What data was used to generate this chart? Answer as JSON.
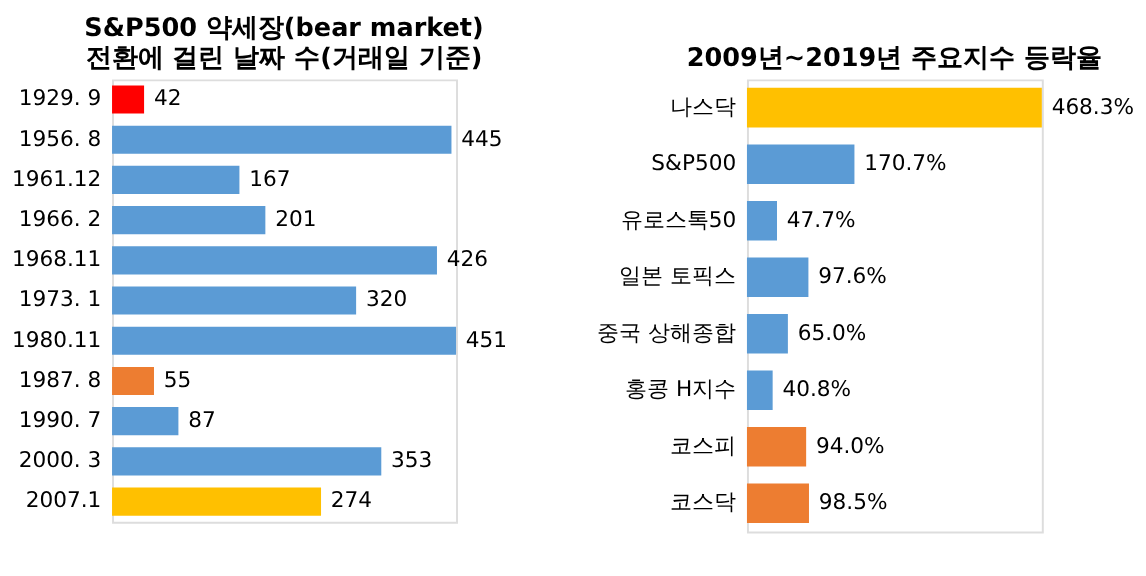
{
  "chart_data": [
    {
      "type": "bar",
      "orientation": "horizontal",
      "title": [
        "S&P500 약세장(bear market)",
        "전환에 걸린 날짜 수(거래일 기준)"
      ],
      "categories": [
        "1929. 9",
        "1956. 8",
        "1961.12",
        "1966. 2",
        "1968.11",
        "1973. 1",
        "1980.11",
        "1987. 8",
        "1990. 7",
        "2000. 3",
        "2007.1"
      ],
      "values": [
        42,
        445,
        167,
        201,
        426,
        320,
        451,
        55,
        87,
        353,
        274
      ],
      "colors": [
        "#ff0000",
        "#5b9bd5",
        "#5b9bd5",
        "#5b9bd5",
        "#5b9bd5",
        "#5b9bd5",
        "#5b9bd5",
        "#ed7d31",
        "#5b9bd5",
        "#5b9bd5",
        "#ffc000"
      ],
      "data_labels": true
    },
    {
      "type": "bar",
      "orientation": "horizontal",
      "title": "2009년~2019년 주요지수 등락율",
      "categories": [
        "나스닥",
        "S&P500",
        "유로스톡50",
        "일본 토픽스",
        "중국 상해종합",
        "홍콩 H지수",
        "코스피",
        "코스닥"
      ],
      "values": [
        468.3,
        170.7,
        47.7,
        97.6,
        65.0,
        40.8,
        94.0,
        98.5
      ],
      "value_labels": [
        "468.3%",
        "170.7%",
        "47.7%",
        "97.6%",
        "65.0%",
        "40.8%",
        "94.0%",
        "98.5%"
      ],
      "colors": [
        "#ffc000",
        "#5b9bd5",
        "#5b9bd5",
        "#5b9bd5",
        "#5b9bd5",
        "#5b9bd5",
        "#ed7d31",
        "#ed7d31"
      ]
    }
  ]
}
